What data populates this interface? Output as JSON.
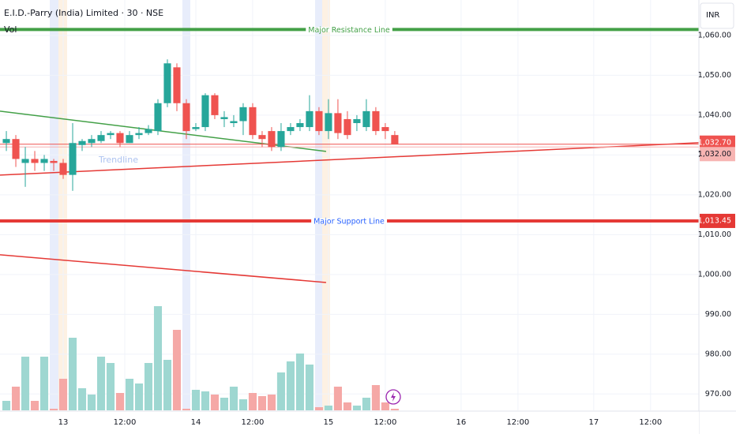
{
  "chart_data": {
    "type": "candlestick",
    "title": "E.I.D.-Parry (India) Limited · 30 · NSE",
    "volume_title": "Vol",
    "currency": "INR",
    "up_color": "#26a69a",
    "down_color": "#ef5350",
    "volume_up_color": "#9ed7d1",
    "volume_down_color": "#f5a8a6",
    "grid": true,
    "x": [
      0,
      1,
      2,
      3,
      4,
      5,
      6,
      7,
      8,
      9,
      10,
      11,
      12,
      13,
      14,
      15,
      16,
      17,
      18,
      19,
      20,
      21,
      22,
      23,
      24,
      25,
      26,
      27,
      28,
      29,
      30,
      31,
      32,
      33,
      34,
      35,
      36,
      37,
      38,
      39,
      40,
      41
    ],
    "open": [
      1033,
      1034,
      1028,
      1029,
      1028,
      1028.5,
      1028,
      1025,
      1032.5,
      1033,
      1033.5,
      1035,
      1035.5,
      1033,
      1035,
      1035.5,
      1036,
      1043,
      1052,
      1043,
      1036.5,
      1037,
      1045,
      1039,
      1038,
      1038.5,
      1042,
      1035,
      1036,
      1032,
      1036,
      1037,
      1037,
      1041,
      1036,
      1040.5,
      1039,
      1038,
      1037,
      1041,
      1037,
      1035
    ],
    "high": [
      1036,
      1035,
      1032,
      1031,
      1030,
      1029,
      1029,
      1038,
      1034,
      1035,
      1036,
      1036,
      1036,
      1036,
      1037,
      1037.5,
      1044,
      1054,
      1053,
      1044,
      1038,
      1045.5,
      1045.5,
      1041,
      1040,
      1043,
      1043,
      1036,
      1037,
      1038,
      1038,
      1039,
      1045,
      1042,
      1044,
      1044,
      1041,
      1040,
      1044,
      1042,
      1038,
      1036
    ],
    "low": [
      1031,
      1027,
      1022,
      1026,
      1026,
      1026,
      1024,
      1021,
      1031,
      1032,
      1033,
      1034,
      1032,
      1033,
      1034,
      1035,
      1035,
      1042,
      1041,
      1034,
      1036,
      1036,
      1039,
      1037,
      1037,
      1035,
      1034,
      1032,
      1031,
      1031,
      1035,
      1036,
      1036,
      1035,
      1034,
      1034,
      1034,
      1036,
      1036,
      1035,
      1034,
      1033
    ],
    "close": [
      1034,
      1029,
      1029,
      1028,
      1029,
      1028,
      1025,
      1033,
      1033.5,
      1034,
      1035,
      1035.5,
      1033,
      1035,
      1035.5,
      1036.5,
      1043,
      1053,
      1043,
      1036,
      1037,
      1045,
      1040,
      1039.5,
      1038.5,
      1042,
      1035,
      1034,
      1032,
      1036,
      1037,
      1038,
      1041,
      1036,
      1040.5,
      1035.5,
      1035,
      1039,
      1041,
      1036,
      1036,
      1032.7
    ],
    "volume": [
      12,
      30,
      68,
      12,
      68,
      2,
      40,
      92,
      28,
      20,
      68,
      60,
      22,
      40,
      34,
      60,
      132,
      64,
      102,
      2,
      26,
      24,
      20,
      16,
      30,
      14,
      22,
      18,
      20,
      48,
      62,
      72,
      58,
      4,
      6,
      30,
      10,
      6,
      16,
      32,
      10,
      2
    ],
    "ylim": [
      965.9,
      1068.9
    ],
    "yticks": [
      {
        "value": 970,
        "label": "970.00"
      },
      {
        "value": 980,
        "label": "980.00"
      },
      {
        "value": 990,
        "label": "990.00"
      },
      {
        "value": 1000,
        "label": "1,000.00"
      },
      {
        "value": 1010,
        "label": "1,010.00"
      },
      {
        "value": 1020,
        "label": "1,020.00"
      },
      {
        "value": 1030,
        "label": "1,030.00"
      },
      {
        "value": 1040,
        "label": "1,040.00"
      },
      {
        "value": 1050,
        "label": "1,050.00"
      },
      {
        "value": 1060,
        "label": "1,060.00"
      }
    ],
    "xlim": [
      -0.67,
      73.1
    ],
    "xticks": [
      {
        "value": 6,
        "label": "13"
      },
      {
        "value": 12.5,
        "label": "12:00"
      },
      {
        "value": 20,
        "label": "14"
      },
      {
        "value": 26,
        "label": "12:00"
      },
      {
        "value": 34,
        "label": "15"
      },
      {
        "value": 40,
        "label": "12:00"
      },
      {
        "value": 48,
        "label": "16"
      },
      {
        "value": 54,
        "label": "12:00"
      },
      {
        "value": 62,
        "label": "17"
      },
      {
        "value": 68,
        "label": "12:00"
      }
    ],
    "level_lines": [
      {
        "name": "Major Resistance Line",
        "value": 1061.5,
        "color": "#43a047",
        "text_color": "#43a047"
      },
      {
        "name": "Major Support Line",
        "value": 1013.45,
        "label": "1,013.45",
        "color": "#e53935",
        "text_color": "#2962ff"
      }
    ],
    "price_lines": [
      {
        "value": 1032.7,
        "label": "1,032.70",
        "color": "#ef5350"
      },
      {
        "value": 1032,
        "label": "1,032.00",
        "color": "#f7b4b2"
      }
    ],
    "trendlines": [
      {
        "x": [
          -0.67,
          33.75
        ],
        "y": [
          1041.0,
          1030.9
        ],
        "color": "#43a047"
      },
      {
        "x": [
          -0.67,
          73.1
        ],
        "y": [
          1024.95,
          1033.07
        ],
        "color": "#e53935"
      },
      {
        "x": [
          -0.67,
          33.75
        ],
        "y": [
          1004.95,
          998.0
        ],
        "color": "#e53935"
      }
    ],
    "annotation": {
      "text": "Trendline",
      "x": 9.75,
      "y": 1028.7
    }
  }
}
